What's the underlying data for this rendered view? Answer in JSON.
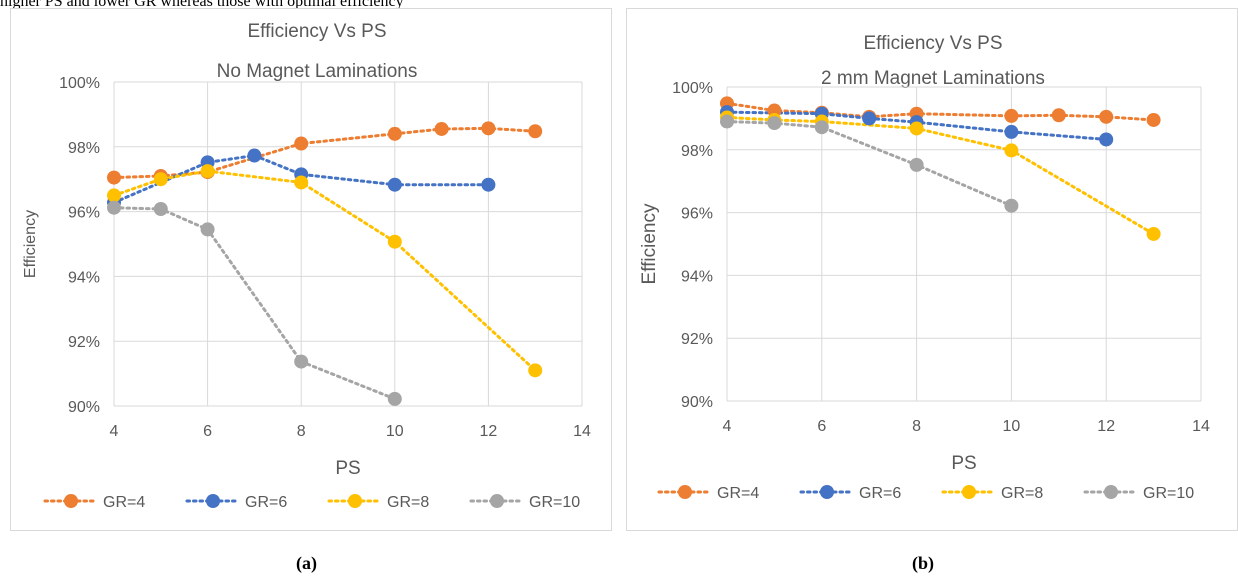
{
  "caption_fragment": "higher PS and lower GR whereas those with optimal efficiency",
  "legend_labels": [
    "GR=4",
    "GR=6",
    "GR=8",
    "GR=10"
  ],
  "colors": {
    "GR=4": "#ED7D31",
    "GR=6": "#4472C4",
    "GR=8": "#FFC000",
    "GR=10": "#A5A5A5",
    "grid": "#d9d9d9",
    "text": "#595959"
  },
  "chart_data": [
    {
      "type": "scatter",
      "style": "dotted lines with circle markers",
      "title": "Efficiency Vs PS",
      "subtitle": "No Magnet Laminations",
      "xlabel": "PS",
      "ylabel": "Efficiency",
      "xlim": [
        4,
        14
      ],
      "ylim": [
        0.9,
        1.0
      ],
      "xticks": [
        "4",
        "6",
        "8",
        "10",
        "12",
        "14"
      ],
      "yticks": [
        "90%",
        "92%",
        "94%",
        "96%",
        "98%",
        "100%"
      ],
      "grid": "horizontal and vertical",
      "legend": "bottom",
      "series": [
        {
          "name": "GR=4",
          "x": [
            4,
            5,
            6,
            8,
            10,
            11,
            12,
            13
          ],
          "y": [
            0.9705,
            0.971,
            0.9722,
            0.981,
            0.984,
            0.9855,
            0.9857,
            0.9848
          ]
        },
        {
          "name": "GR=6",
          "x": [
            4,
            6,
            7,
            8,
            10,
            12
          ],
          "y": [
            0.9628,
            0.9752,
            0.9773,
            0.9715,
            0.9683,
            0.9683
          ]
        },
        {
          "name": "GR=8",
          "x": [
            4,
            5,
            6,
            8,
            10,
            13
          ],
          "y": [
            0.965,
            0.97,
            0.9725,
            0.969,
            0.9507,
            0.911
          ]
        },
        {
          "name": "GR=10",
          "x": [
            4,
            5,
            6,
            8,
            10
          ],
          "y": [
            0.9612,
            0.9608,
            0.9545,
            0.9137,
            0.9022
          ]
        }
      ],
      "sub_label": "(a)"
    },
    {
      "type": "scatter",
      "style": "dotted lines with circle markers",
      "title": "Efficiency Vs PS",
      "subtitle": "2 mm Magnet Laminations",
      "xlabel": "PS",
      "ylabel": "Efficiency",
      "xlim": [
        4,
        14
      ],
      "ylim": [
        0.9,
        1.0
      ],
      "xticks": [
        "4",
        "6",
        "8",
        "10",
        "12",
        "14"
      ],
      "yticks": [
        "90%",
        "92%",
        "94%",
        "96%",
        "98%",
        "100%"
      ],
      "grid": "horizontal and vertical",
      "legend": "bottom",
      "series": [
        {
          "name": "GR=4",
          "x": [
            4,
            5,
            6,
            7,
            8,
            10,
            11,
            12,
            13
          ],
          "y": [
            0.9948,
            0.9925,
            0.9918,
            0.9905,
            0.9915,
            0.9908,
            0.991,
            0.9905,
            0.9895
          ]
        },
        {
          "name": "GR=6",
          "x": [
            4,
            6,
            7,
            8,
            10,
            12
          ],
          "y": [
            0.992,
            0.9915,
            0.99,
            0.9888,
            0.9857,
            0.9833
          ]
        },
        {
          "name": "GR=8",
          "x": [
            4,
            5,
            6,
            8,
            10,
            13
          ],
          "y": [
            0.9903,
            0.9895,
            0.989,
            0.9868,
            0.9798,
            0.9532
          ]
        },
        {
          "name": "GR=10",
          "x": [
            4,
            5,
            6,
            8,
            10
          ],
          "y": [
            0.989,
            0.9885,
            0.9872,
            0.9752,
            0.9622
          ]
        }
      ],
      "sub_label": "(b)"
    }
  ]
}
